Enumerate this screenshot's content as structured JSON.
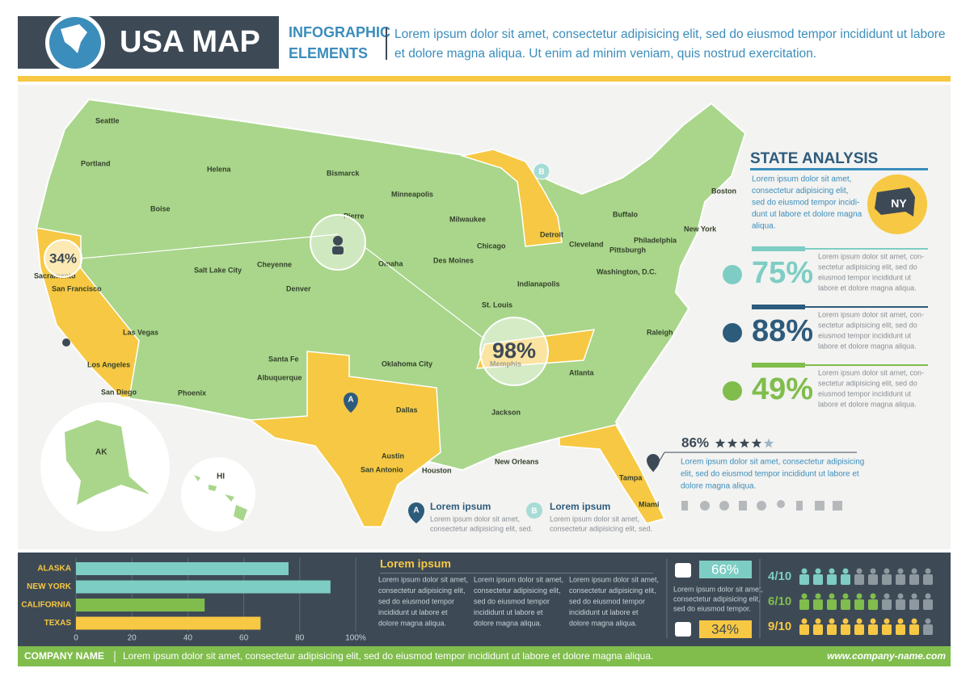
{
  "header": {
    "title": "USA MAP",
    "subtitle_lines": [
      "INFOGRAPHIC",
      "ELEMENTS"
    ],
    "description_lines": [
      "Lorem ipsum dolor sit amet, consectetur adipisicing elit, sed do eiusmod tempor incididunt ut labore",
      "et dolore magna aliqua. Ut enim ad minim veniam, quis nostrud exercitation."
    ]
  },
  "map": {
    "cities": [
      "Seattle",
      "Portland",
      "Boise",
      "Helena",
      "Bismarck",
      "Minneapolis",
      "Pierre",
      "Salt Lake City",
      "Cheyenne",
      "Denver",
      "San Francisco",
      "Sacramento",
      "Las Vegas",
      "Los Angeles",
      "San Diego",
      "Phoenix",
      "Albuquerque",
      "Santa Fe",
      "Oklahoma City",
      "Dallas",
      "Austin",
      "San Antonio",
      "Houston",
      "New Orleans",
      "Memphis",
      "St. Louis",
      "Chicago",
      "Detroit",
      "Atlanta",
      "Miami",
      "Tampa",
      "Washington, D.C.",
      "Philadelphia",
      "New York",
      "Boston",
      "Omaha",
      "Indianapolis",
      "Cleveland",
      "Pittsburgh",
      "Milwaukee",
      "Des Moines",
      "Jackson",
      "Raleigh",
      "Buffalo"
    ],
    "callouts": [
      "34%",
      "98%"
    ],
    "insets": [
      "AK",
      "HI"
    ],
    "markers": [
      "A",
      "B"
    ]
  },
  "legend": [
    {
      "marker": "A",
      "title": "Lorem ipsum",
      "text_lines": [
        "Lorem ipsum dolor sit amet,",
        "consectetur adipisicing elit, sed."
      ]
    },
    {
      "marker": "B",
      "title": "Lorem ipsum",
      "text_lines": [
        "Lorem ipsum dolor sit amet,",
        "consectetur adipisicing elit, sed."
      ]
    }
  ],
  "state_analysis": {
    "title": "STATE ANALYSIS",
    "text_lines": [
      "Lorem ipsum dolor sit amet,",
      "consectetur adipisicing elit,",
      "sed do eiusmod tempor incidi-",
      "dunt ut labore et dolore magna",
      "aliqua."
    ],
    "badge": "NY",
    "stats": [
      {
        "label": "75%",
        "color": "#7ecdc4",
        "text_lines": [
          "Lorem ipsum dolor sit amet, con-",
          "sectetur adipisicing elit, sed do",
          "eiusmod tempor incididunt ut",
          "labore et dolore magna aliqua."
        ]
      },
      {
        "label": "88%",
        "color": "#2d5b7c",
        "text_lines": [
          "Lorem ipsum dolor sit amet, con-",
          "sectetur adipisicing elit, sed do",
          "eiusmod tempor incididunt ut",
          "labore et dolore magna aliqua."
        ]
      },
      {
        "label": "49%",
        "color": "#80bd4c",
        "text_lines": [
          "Lorem ipsum dolor sit amet, con-",
          "sectetur adipisicing elit, sed do",
          "eiusmod tempor incididunt ut",
          "labore et dolore magna aliqua."
        ]
      }
    ]
  },
  "rating": {
    "label": "86%",
    "stars": 4,
    "stars_max": 5,
    "text_lines": [
      "Lorem ipsum dolor sit amet, consectetur adipisicing",
      "elit, sed do eiusmod tempor incididunt ut labore et",
      "dolore magna aliqua."
    ]
  },
  "chart_data": {
    "type": "hbar",
    "categories": [
      "ALASKA",
      "NEW YORK",
      "CALIFORNIA",
      "TEXAS"
    ],
    "values": [
      76,
      91,
      46,
      66
    ],
    "colors": [
      "#7ecdc4",
      "#7ecdc4",
      "#80bd4c",
      "#f7c843"
    ],
    "xlim": [
      0,
      100
    ],
    "xticks": [
      0,
      20,
      40,
      60,
      80,
      {
        "value": 100,
        "label": "100%"
      }
    ]
  },
  "notes": {
    "title": "Lorem ipsum",
    "columns": [
      [
        "Lorem ipsum dolor sit amet,",
        "consectetur adipisicing elit,",
        "sed do eiusmod tempor",
        "incididunt ut labore et",
        "dolore magna aliqua."
      ],
      [
        "Lorem ipsum dolor sit amet,",
        "consectetur adipisicing elit,",
        "sed do eiusmod tempor",
        "incididunt ut labore et",
        "dolore magna aliqua."
      ],
      [
        "Lorem ipsum dolor sit amet,",
        "consectetur adipisicing elit,",
        "sed do eiusmod tempor",
        "incididunt ut labore et",
        "dolore magna aliqua."
      ]
    ]
  },
  "poll": {
    "up": {
      "label": "66%",
      "text_lines": [
        "Lorem ipsum dolor sit amet,",
        "consectetur adipisicing elit,",
        "sed do eiusmod tempor."
      ]
    },
    "down": {
      "label": "34%"
    }
  },
  "people": [
    {
      "label": "4/10",
      "value": 4,
      "total": 10,
      "color": "#7ecdc4"
    },
    {
      "label": "6/10",
      "value": 6,
      "total": 10,
      "color": "#80bd4c"
    },
    {
      "label": "9/10",
      "value": 9,
      "total": 10,
      "color": "#f7c843"
    }
  ],
  "footer": {
    "company": "COMPANY NAME",
    "text": "Lorem ipsum dolor sit amet, consectetur adipisicing elit, sed do eiusmod tempor incididunt ut labore et dolore magna aliqua.",
    "url": "www.company-name.com"
  }
}
